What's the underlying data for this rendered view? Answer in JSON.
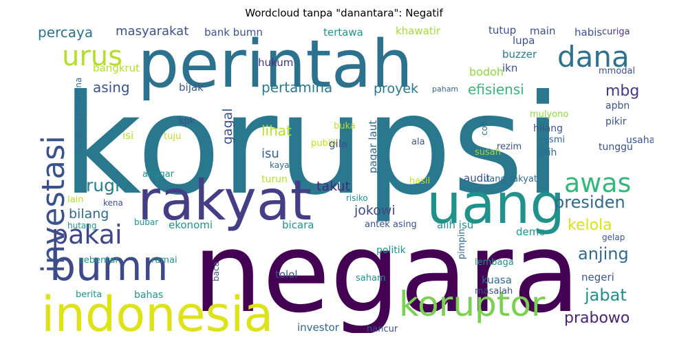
{
  "title": "Wordcloud tanpa \"danantara\": Negatif",
  "words": [
    {
      "text": "korupsi",
      "color": "#2a788e"
    },
    {
      "text": "negara",
      "color": "#440154"
    },
    {
      "text": "perintah",
      "color": "#2c728e"
    },
    {
      "text": "uang",
      "color": "#21918c"
    },
    {
      "text": "rakyat",
      "color": "#433e85"
    },
    {
      "text": "indonesia",
      "color": "#dde318"
    },
    {
      "text": "bumn",
      "color": "#3e4a89"
    },
    {
      "text": "koruptor",
      "color": "#7ad151"
    },
    {
      "text": "investasi",
      "color": "#3b518b"
    },
    {
      "text": "dana",
      "color": "#2c728e"
    },
    {
      "text": "urus",
      "color": "#b5de2b"
    },
    {
      "text": "pakai",
      "color": "#404688"
    },
    {
      "text": "awas",
      "color": "#35b779"
    },
    {
      "text": "rugi",
      "color": "#297b8e"
    },
    {
      "text": "presiden",
      "color": "#31688e"
    },
    {
      "text": "anjing",
      "color": "#31688e"
    },
    {
      "text": "jabat",
      "color": "#228c8d"
    },
    {
      "text": "prabowo",
      "color": "#482475"
    },
    {
      "text": "kelola",
      "color": "#d8e219"
    },
    {
      "text": "mbg",
      "color": "#453781"
    },
    {
      "text": "percaya",
      "color": "#2c728e"
    },
    {
      "text": "masyarakat",
      "color": "#3b528b"
    },
    {
      "text": "asing",
      "color": "#3b528b"
    },
    {
      "text": "pertamina",
      "color": "#2a788e"
    },
    {
      "text": "efisiensi",
      "color": "#35b779"
    },
    {
      "text": "proyek",
      "color": "#2a788e"
    },
    {
      "text": "gagal",
      "color": "#3b528b"
    },
    {
      "text": "lihat",
      "color": "#b5de2b"
    },
    {
      "text": "isu",
      "color": "#365c8d"
    },
    {
      "text": "takut",
      "color": "#482878"
    },
    {
      "text": "jokowi",
      "color": "#3e4989"
    },
    {
      "text": "bilang",
      "color": "#31688e"
    },
    {
      "text": "bodoh",
      "color": "#90d743"
    },
    {
      "text": "hukum",
      "color": "#46327e"
    },
    {
      "text": "bank bumn",
      "color": "#3b528b"
    },
    {
      "text": "tertawa",
      "color": "#21918c"
    },
    {
      "text": "khawatir",
      "color": "#a2da37"
    },
    {
      "text": "tutup",
      "color": "#3b528b"
    },
    {
      "text": "main",
      "color": "#3b528b"
    },
    {
      "text": "habis",
      "color": "#3b528b"
    },
    {
      "text": "curiga",
      "color": "#46327e"
    },
    {
      "text": "lupa",
      "color": "#3b528b"
    },
    {
      "text": "buzzer",
      "color": "#2a788e"
    },
    {
      "text": "ikn",
      "color": "#3b528b"
    },
    {
      "text": "mmodal",
      "color": "#3b528b"
    },
    {
      "text": "bangkrut",
      "color": "#b5de2b"
    },
    {
      "text": "bijak",
      "color": "#3b528b"
    },
    {
      "text": "paham",
      "color": "#31688e"
    },
    {
      "text": "apbn",
      "color": "#3b528b"
    },
    {
      "text": "mulyono",
      "color": "#90d743"
    },
    {
      "text": "pikir",
      "color": "#3b528b"
    },
    {
      "text": "hilang",
      "color": "#3b528b"
    },
    {
      "text": "usaha",
      "color": "#3b528b"
    },
    {
      "text": "resmi",
      "color": "#31688e"
    },
    {
      "text": "pilih",
      "color": "#31688e"
    },
    {
      "text": "tunggu",
      "color": "#3b528b"
    },
    {
      "text": "rezim",
      "color": "#3b528b"
    },
    {
      "text": "susah",
      "color": "#a2da37"
    },
    {
      "text": "coba",
      "color": "#31688e"
    },
    {
      "text": "kpk",
      "color": "#3b528b"
    },
    {
      "text": "isi",
      "color": "#b5de2b"
    },
    {
      "text": "tuju",
      "color": "#b5de2b"
    },
    {
      "text": "buka",
      "color": "#b5de2b"
    },
    {
      "text": "publik",
      "color": "#c2df23"
    },
    {
      "text": "gila",
      "color": "#3b528b"
    },
    {
      "text": "pagar laut",
      "color": "#31688e"
    },
    {
      "text": "ala",
      "color": "#3b528b"
    },
    {
      "text": "kaya",
      "color": "#31688e"
    },
    {
      "text": "anggar",
      "color": "#21918c"
    },
    {
      "text": "turun",
      "color": "#b5de2b"
    },
    {
      "text": "hasil",
      "color": "#c2df23"
    },
    {
      "text": "audit",
      "color": "#3b528b"
    },
    {
      "text": "uang rakyat",
      "color": "#31688e"
    },
    {
      "text": "lain",
      "color": "#b5de2b"
    },
    {
      "text": "kena",
      "color": "#3b528b"
    },
    {
      "text": "risiko",
      "color": "#21918c"
    },
    {
      "text": "hutang",
      "color": "#21918c"
    },
    {
      "text": "bubar",
      "color": "#21918c"
    },
    {
      "text": "ekonomi",
      "color": "#21918c"
    },
    {
      "text": "bicara",
      "color": "#21918c"
    },
    {
      "text": "antek asing",
      "color": "#3b528b"
    },
    {
      "text": "alih isu",
      "color": "#21918c"
    },
    {
      "text": "demo",
      "color": "#21918c"
    },
    {
      "text": "gelap",
      "color": "#3b528b"
    },
    {
      "text": "pimpin",
      "color": "#31688e"
    },
    {
      "text": "politik",
      "color": "#21918c"
    },
    {
      "text": "sebentar",
      "color": "#21918c"
    },
    {
      "text": "ramai",
      "color": "#21918c"
    },
    {
      "text": "baca",
      "color": "#3b528b"
    },
    {
      "text": "tolol",
      "color": "#3b528b"
    },
    {
      "text": "lembaga",
      "color": "#21918c"
    },
    {
      "text": "kuasa",
      "color": "#31688e"
    },
    {
      "text": "negeri",
      "color": "#3b528b"
    },
    {
      "text": "saham",
      "color": "#21918c"
    },
    {
      "text": "berita",
      "color": "#21918c"
    },
    {
      "text": "bahas",
      "color": "#21918c"
    },
    {
      "text": "masalah",
      "color": "#3b528b"
    },
    {
      "text": "investor",
      "color": "#31688e"
    },
    {
      "text": "hancur",
      "color": "#3b528b"
    },
    {
      "text": "korupsi pertamina",
      "color": "#31688e"
    }
  ]
}
